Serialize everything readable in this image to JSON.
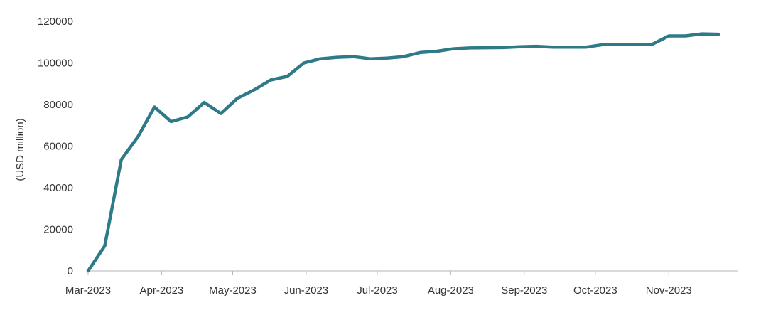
{
  "chart_data": {
    "type": "line",
    "title": "",
    "xlabel": "",
    "ylabel": "(USD million)",
    "ylim": [
      0,
      120000
    ],
    "yticks": [
      0,
      20000,
      40000,
      60000,
      80000,
      100000,
      120000
    ],
    "ytick_labels": [
      "0",
      "20000",
      "40000",
      "60000",
      "80000",
      "100000",
      "120000"
    ],
    "xlim": [
      "2023-03-01",
      "2023-11-30"
    ],
    "xticks": [
      "2023-03-01",
      "2023-04-01",
      "2023-05-01",
      "2023-06-01",
      "2023-07-01",
      "2023-08-01",
      "2023-09-01",
      "2023-10-01",
      "2023-11-01"
    ],
    "xtick_labels": [
      "Mar-2023",
      "Apr-2023",
      "May-2023",
      "Jun-2023",
      "Jul-2023",
      "Aug-2023",
      "Sep-2023",
      "Oct-2023",
      "Nov-2023"
    ],
    "grid": false,
    "legend": "none",
    "color": "#2E7A88",
    "series": [
      {
        "x": [
          "2023-03-01",
          "2023-03-08",
          "2023-03-15",
          "2023-03-22",
          "2023-03-29",
          "2023-04-05",
          "2023-04-12",
          "2023-04-19",
          "2023-04-26",
          "2023-05-03",
          "2023-05-10",
          "2023-05-17",
          "2023-05-24",
          "2023-05-31",
          "2023-06-07",
          "2023-06-14",
          "2023-06-21",
          "2023-06-28",
          "2023-07-05",
          "2023-07-12",
          "2023-07-19",
          "2023-07-26",
          "2023-08-02",
          "2023-08-09",
          "2023-08-16",
          "2023-08-23",
          "2023-08-30",
          "2023-09-06",
          "2023-09-13",
          "2023-09-20",
          "2023-09-27",
          "2023-10-04",
          "2023-10-11",
          "2023-10-18",
          "2023-10-25",
          "2023-11-01",
          "2023-11-08",
          "2023-11-15",
          "2023-11-22"
        ],
        "values": [
          0,
          12000,
          53500,
          64500,
          78800,
          71800,
          74000,
          81000,
          75700,
          83000,
          87000,
          91800,
          93500,
          100000,
          102000,
          102700,
          103000,
          102000,
          102300,
          103000,
          105000,
          105600,
          106800,
          107200,
          107300,
          107400,
          107800,
          108000,
          107600,
          107600,
          107600,
          108800,
          108800,
          109000,
          109000,
          113000,
          113000,
          114000,
          113800
        ]
      }
    ]
  }
}
